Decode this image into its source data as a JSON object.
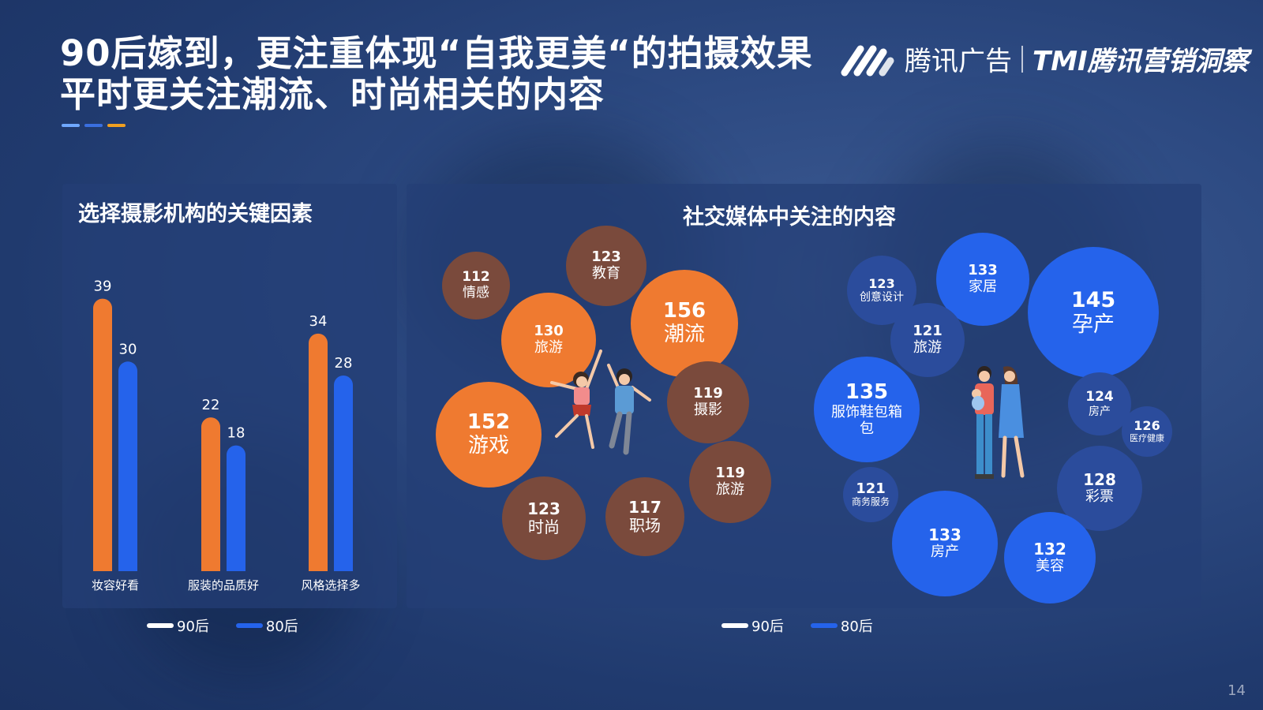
{
  "title": {
    "line1": "90后嫁到，更注重体现“自我更美“的拍摄效果",
    "line2": "平时更关注潮流、时尚相关的内容"
  },
  "logo": {
    "brand": "腾讯广告",
    "sub": "TMI腾讯营销洞察"
  },
  "colors": {
    "post90": "#ef7a30",
    "post80": "#2563eb",
    "post90_minor": "#7a4a3c",
    "post80_minor": "#2b4c9c",
    "accent1": "#6fa8ff",
    "accent2": "#3a6fe0",
    "accent3": "#f0a020"
  },
  "page_number": "14",
  "legend": {
    "post90": "90后",
    "post80": "80后"
  },
  "chart_data": [
    {
      "type": "bar",
      "title": "选择摄影机构的关键因素",
      "categories": [
        "妆容好看",
        "服装的品质好",
        "风格选择多"
      ],
      "series": [
        {
          "name": "90后",
          "values": [
            39,
            22,
            34
          ]
        },
        {
          "name": "80后",
          "values": [
            30,
            18,
            28
          ]
        }
      ],
      "ylim": [
        0,
        42
      ]
    },
    {
      "type": "bubble",
      "title": "社交媒体中关注的内容",
      "series": [
        {
          "name": "90后",
          "points": [
            {
              "value": 112,
              "label": "情感"
            },
            {
              "value": 123,
              "label": "教育"
            },
            {
              "value": 130,
              "label": "旅游"
            },
            {
              "value": 156,
              "label": "潮流"
            },
            {
              "value": 119,
              "label": "摄影"
            },
            {
              "value": 152,
              "label": "游戏"
            },
            {
              "value": 119,
              "label": "旅游"
            },
            {
              "value": 123,
              "label": "时尚"
            },
            {
              "value": 117,
              "label": "职场"
            }
          ]
        },
        {
          "name": "80后",
          "points": [
            {
              "value": 123,
              "label": "创意设计"
            },
            {
              "value": 133,
              "label": "家居"
            },
            {
              "value": 145,
              "label": "孕产"
            },
            {
              "value": 121,
              "label": "旅游"
            },
            {
              "value": 135,
              "label": "服饰鞋包箱包"
            },
            {
              "value": 124,
              "label": "房产"
            },
            {
              "value": 126,
              "label": "医疗健康"
            },
            {
              "value": 121,
              "label": "商务服务"
            },
            {
              "value": 128,
              "label": "彩票"
            },
            {
              "value": 133,
              "label": "房产"
            },
            {
              "value": 132,
              "label": "美容"
            }
          ]
        }
      ]
    }
  ]
}
